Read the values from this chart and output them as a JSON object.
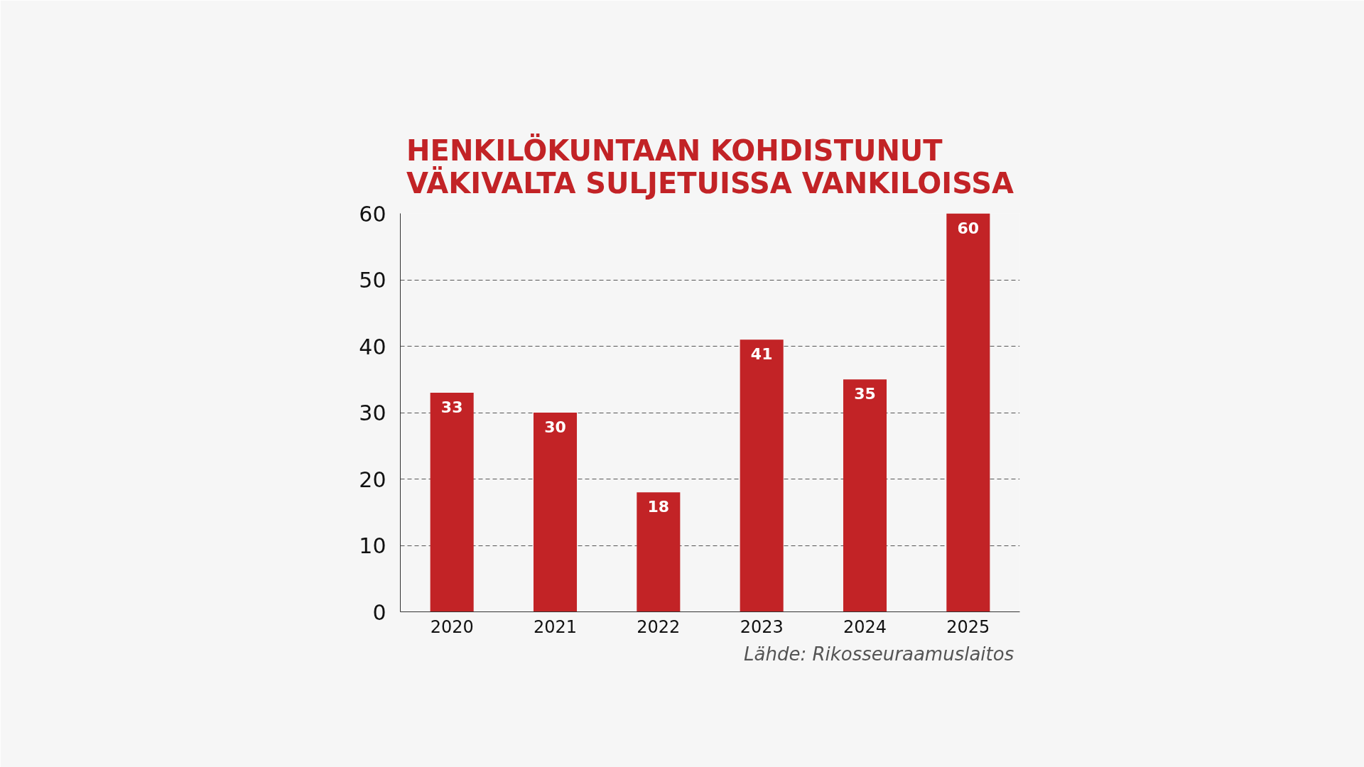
{
  "chart_data": {
    "type": "bar",
    "title": "HENKILÖKUNTAAN KOHDISTUNUT\nVÄKIVALTA SULJETUISSA VANKILOISSA",
    "categories": [
      "2020",
      "2021",
      "2022",
      "2023",
      "2024",
      "2025"
    ],
    "values": [
      33,
      30,
      18,
      41,
      35,
      60
    ],
    "color": "#c22326",
    "ylim": [
      0,
      60
    ],
    "yticks": [
      0,
      10,
      20,
      30,
      40,
      50,
      60
    ],
    "grid": "y",
    "data_labels": true,
    "annotations": [
      "Lähde:  Rikosseuraamuslaitos"
    ]
  }
}
